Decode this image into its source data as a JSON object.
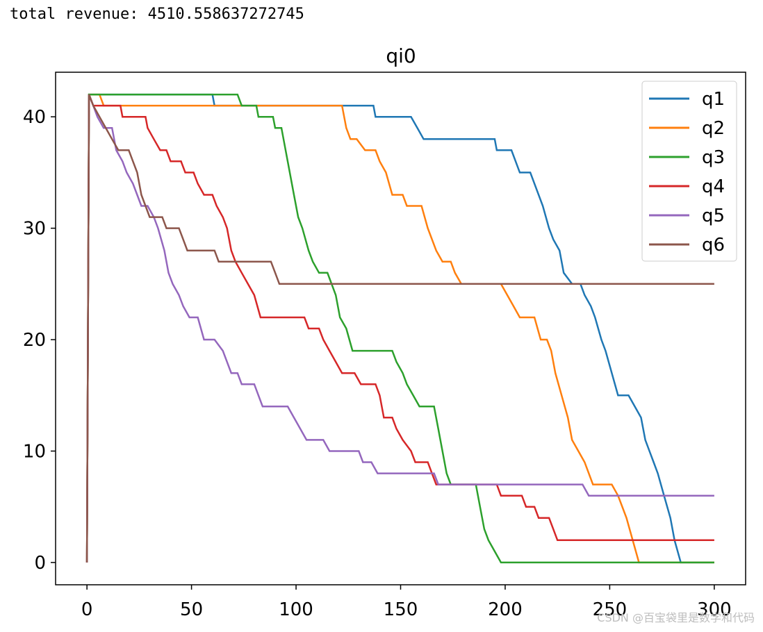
{
  "console": {
    "output_text": "total revenue: 4510.558637272745"
  },
  "watermark": {
    "text": "CSDN @百宝袋里是数学和代码"
  },
  "colors": {
    "q1": "#1f77b4",
    "q2": "#ff7f0e",
    "q3": "#2ca02c",
    "q4": "#d62728",
    "q5": "#9467bd",
    "q6": "#8c564b"
  },
  "chart_data": {
    "type": "line",
    "title": "qi0",
    "xlabel": "",
    "ylabel": "",
    "xlim": [
      -15,
      315
    ],
    "ylim": [
      -2,
      44
    ],
    "xticks": [
      0,
      50,
      100,
      150,
      200,
      250,
      300
    ],
    "yticks": [
      0,
      10,
      20,
      30,
      40
    ],
    "grid": false,
    "legend_position": "top-right",
    "series": [
      {
        "name": "q1",
        "points": [
          [
            0,
            0
          ],
          [
            1,
            42
          ],
          [
            60,
            42
          ],
          [
            61,
            41
          ],
          [
            125,
            41
          ],
          [
            137,
            41
          ],
          [
            138,
            40
          ],
          [
            155,
            40
          ],
          [
            158,
            39
          ],
          [
            161,
            38
          ],
          [
            195,
            38
          ],
          [
            196,
            37
          ],
          [
            203,
            37
          ],
          [
            205,
            36
          ],
          [
            207,
            35
          ],
          [
            212,
            35
          ],
          [
            214,
            34
          ],
          [
            218,
            32
          ],
          [
            221,
            30
          ],
          [
            223,
            29
          ],
          [
            226,
            28
          ],
          [
            228,
            26
          ],
          [
            232,
            25
          ],
          [
            236,
            25
          ],
          [
            238,
            24
          ],
          [
            241,
            23
          ],
          [
            243,
            22
          ],
          [
            246,
            20
          ],
          [
            248,
            19
          ],
          [
            251,
            17
          ],
          [
            254,
            15
          ],
          [
            259,
            15
          ],
          [
            262,
            14
          ],
          [
            265,
            13
          ],
          [
            267,
            11
          ],
          [
            269,
            10
          ],
          [
            271,
            9
          ],
          [
            273,
            8
          ],
          [
            276,
            6
          ],
          [
            279,
            4
          ],
          [
            281,
            2
          ],
          [
            284,
            0
          ],
          [
            300,
            0
          ]
        ]
      },
      {
        "name": "q2",
        "points": [
          [
            0,
            0
          ],
          [
            1,
            42
          ],
          [
            6,
            42
          ],
          [
            8,
            41
          ],
          [
            122,
            41
          ],
          [
            124,
            39
          ],
          [
            126,
            38
          ],
          [
            129,
            38
          ],
          [
            133,
            37
          ],
          [
            138,
            37
          ],
          [
            140,
            36
          ],
          [
            143,
            35
          ],
          [
            146,
            33
          ],
          [
            151,
            33
          ],
          [
            153,
            32
          ],
          [
            160,
            32
          ],
          [
            163,
            30
          ],
          [
            167,
            28
          ],
          [
            170,
            27
          ],
          [
            174,
            27
          ],
          [
            176,
            26
          ],
          [
            179,
            25
          ],
          [
            198,
            25
          ],
          [
            201,
            24
          ],
          [
            204,
            23
          ],
          [
            207,
            22
          ],
          [
            214,
            22
          ],
          [
            217,
            20
          ],
          [
            220,
            20
          ],
          [
            222,
            19
          ],
          [
            224,
            17
          ],
          [
            227,
            15
          ],
          [
            230,
            13
          ],
          [
            232,
            11
          ],
          [
            235,
            10
          ],
          [
            238,
            9
          ],
          [
            240,
            8
          ],
          [
            242,
            7
          ],
          [
            251,
            7
          ],
          [
            254,
            6
          ],
          [
            258,
            4
          ],
          [
            261,
            2
          ],
          [
            264,
            0
          ],
          [
            300,
            0
          ]
        ]
      },
      {
        "name": "q3",
        "points": [
          [
            0,
            0
          ],
          [
            1,
            42
          ],
          [
            72,
            42
          ],
          [
            74,
            41
          ],
          [
            81,
            41
          ],
          [
            82,
            40
          ],
          [
            89,
            40
          ],
          [
            90,
            39
          ],
          [
            93,
            39
          ],
          [
            95,
            37
          ],
          [
            97,
            35
          ],
          [
            99,
            33
          ],
          [
            101,
            31
          ],
          [
            103,
            30
          ],
          [
            106,
            28
          ],
          [
            108,
            27
          ],
          [
            111,
            26
          ],
          [
            115,
            26
          ],
          [
            117,
            25
          ],
          [
            119,
            24
          ],
          [
            121,
            22
          ],
          [
            124,
            21
          ],
          [
            127,
            19
          ],
          [
            134,
            19
          ],
          [
            146,
            19
          ],
          [
            148,
            18
          ],
          [
            151,
            17
          ],
          [
            153,
            16
          ],
          [
            156,
            15
          ],
          [
            159,
            14
          ],
          [
            166,
            14
          ],
          [
            168,
            12
          ],
          [
            170,
            10
          ],
          [
            172,
            8
          ],
          [
            174,
            7
          ],
          [
            186,
            7
          ],
          [
            188,
            5
          ],
          [
            190,
            3
          ],
          [
            192,
            2
          ],
          [
            195,
            1
          ],
          [
            198,
            0
          ],
          [
            300,
            0
          ]
        ]
      },
      {
        "name": "q4",
        "points": [
          [
            0,
            0
          ],
          [
            1,
            42
          ],
          [
            3,
            41
          ],
          [
            16,
            41
          ],
          [
            17,
            40
          ],
          [
            28,
            40
          ],
          [
            29,
            39
          ],
          [
            32,
            38
          ],
          [
            35,
            37
          ],
          [
            38,
            37
          ],
          [
            40,
            36
          ],
          [
            45,
            36
          ],
          [
            47,
            35
          ],
          [
            51,
            35
          ],
          [
            53,
            34
          ],
          [
            56,
            33
          ],
          [
            60,
            33
          ],
          [
            62,
            32
          ],
          [
            65,
            31
          ],
          [
            67,
            30
          ],
          [
            69,
            28
          ],
          [
            71,
            27
          ],
          [
            74,
            26
          ],
          [
            77,
            25
          ],
          [
            80,
            24
          ],
          [
            83,
            22
          ],
          [
            96,
            22
          ],
          [
            99,
            22
          ],
          [
            104,
            22
          ],
          [
            106,
            21
          ],
          [
            111,
            21
          ],
          [
            113,
            20
          ],
          [
            116,
            19
          ],
          [
            119,
            18
          ],
          [
            122,
            17
          ],
          [
            128,
            17
          ],
          [
            131,
            16
          ],
          [
            138,
            16
          ],
          [
            140,
            15
          ],
          [
            142,
            13
          ],
          [
            146,
            13
          ],
          [
            148,
            12
          ],
          [
            151,
            11
          ],
          [
            155,
            10
          ],
          [
            157,
            9
          ],
          [
            163,
            9
          ],
          [
            165,
            8
          ],
          [
            167,
            7
          ],
          [
            196,
            7
          ],
          [
            198,
            6
          ],
          [
            208,
            6
          ],
          [
            210,
            5
          ],
          [
            214,
            5
          ],
          [
            216,
            4
          ],
          [
            221,
            4
          ],
          [
            223,
            3
          ],
          [
            225,
            2
          ],
          [
            300,
            2
          ]
        ]
      },
      {
        "name": "q5",
        "points": [
          [
            0,
            0
          ],
          [
            1,
            42
          ],
          [
            3,
            41
          ],
          [
            5,
            40
          ],
          [
            8,
            39
          ],
          [
            12,
            39
          ],
          [
            14,
            37
          ],
          [
            17,
            36
          ],
          [
            19,
            35
          ],
          [
            22,
            34
          ],
          [
            24,
            33
          ],
          [
            26,
            32
          ],
          [
            29,
            32
          ],
          [
            32,
            31
          ],
          [
            34,
            30
          ],
          [
            37,
            28
          ],
          [
            39,
            26
          ],
          [
            41,
            25
          ],
          [
            44,
            24
          ],
          [
            46,
            23
          ],
          [
            49,
            22
          ],
          [
            53,
            22
          ],
          [
            56,
            20
          ],
          [
            61,
            20
          ],
          [
            65,
            19
          ],
          [
            67,
            18
          ],
          [
            69,
            17
          ],
          [
            72,
            17
          ],
          [
            74,
            16
          ],
          [
            80,
            16
          ],
          [
            82,
            15
          ],
          [
            84,
            14
          ],
          [
            96,
            14
          ],
          [
            99,
            13
          ],
          [
            102,
            12
          ],
          [
            105,
            11
          ],
          [
            113,
            11
          ],
          [
            116,
            10
          ],
          [
            130,
            10
          ],
          [
            132,
            9
          ],
          [
            136,
            9
          ],
          [
            139,
            8
          ],
          [
            166,
            8
          ],
          [
            168,
            7
          ],
          [
            237,
            7
          ],
          [
            240,
            6
          ],
          [
            300,
            6
          ]
        ]
      },
      {
        "name": "q6",
        "points": [
          [
            0,
            0
          ],
          [
            1,
            42
          ],
          [
            3,
            41
          ],
          [
            6,
            40
          ],
          [
            9,
            39
          ],
          [
            12,
            38
          ],
          [
            15,
            37
          ],
          [
            20,
            37
          ],
          [
            22,
            36
          ],
          [
            24,
            35
          ],
          [
            26,
            33
          ],
          [
            28,
            32
          ],
          [
            30,
            31
          ],
          [
            36,
            31
          ],
          [
            38,
            30
          ],
          [
            44,
            30
          ],
          [
            46,
            29
          ],
          [
            48,
            28
          ],
          [
            61,
            28
          ],
          [
            63,
            27
          ],
          [
            88,
            27
          ],
          [
            90,
            26
          ],
          [
            92,
            25
          ],
          [
            300,
            25
          ]
        ]
      }
    ]
  }
}
